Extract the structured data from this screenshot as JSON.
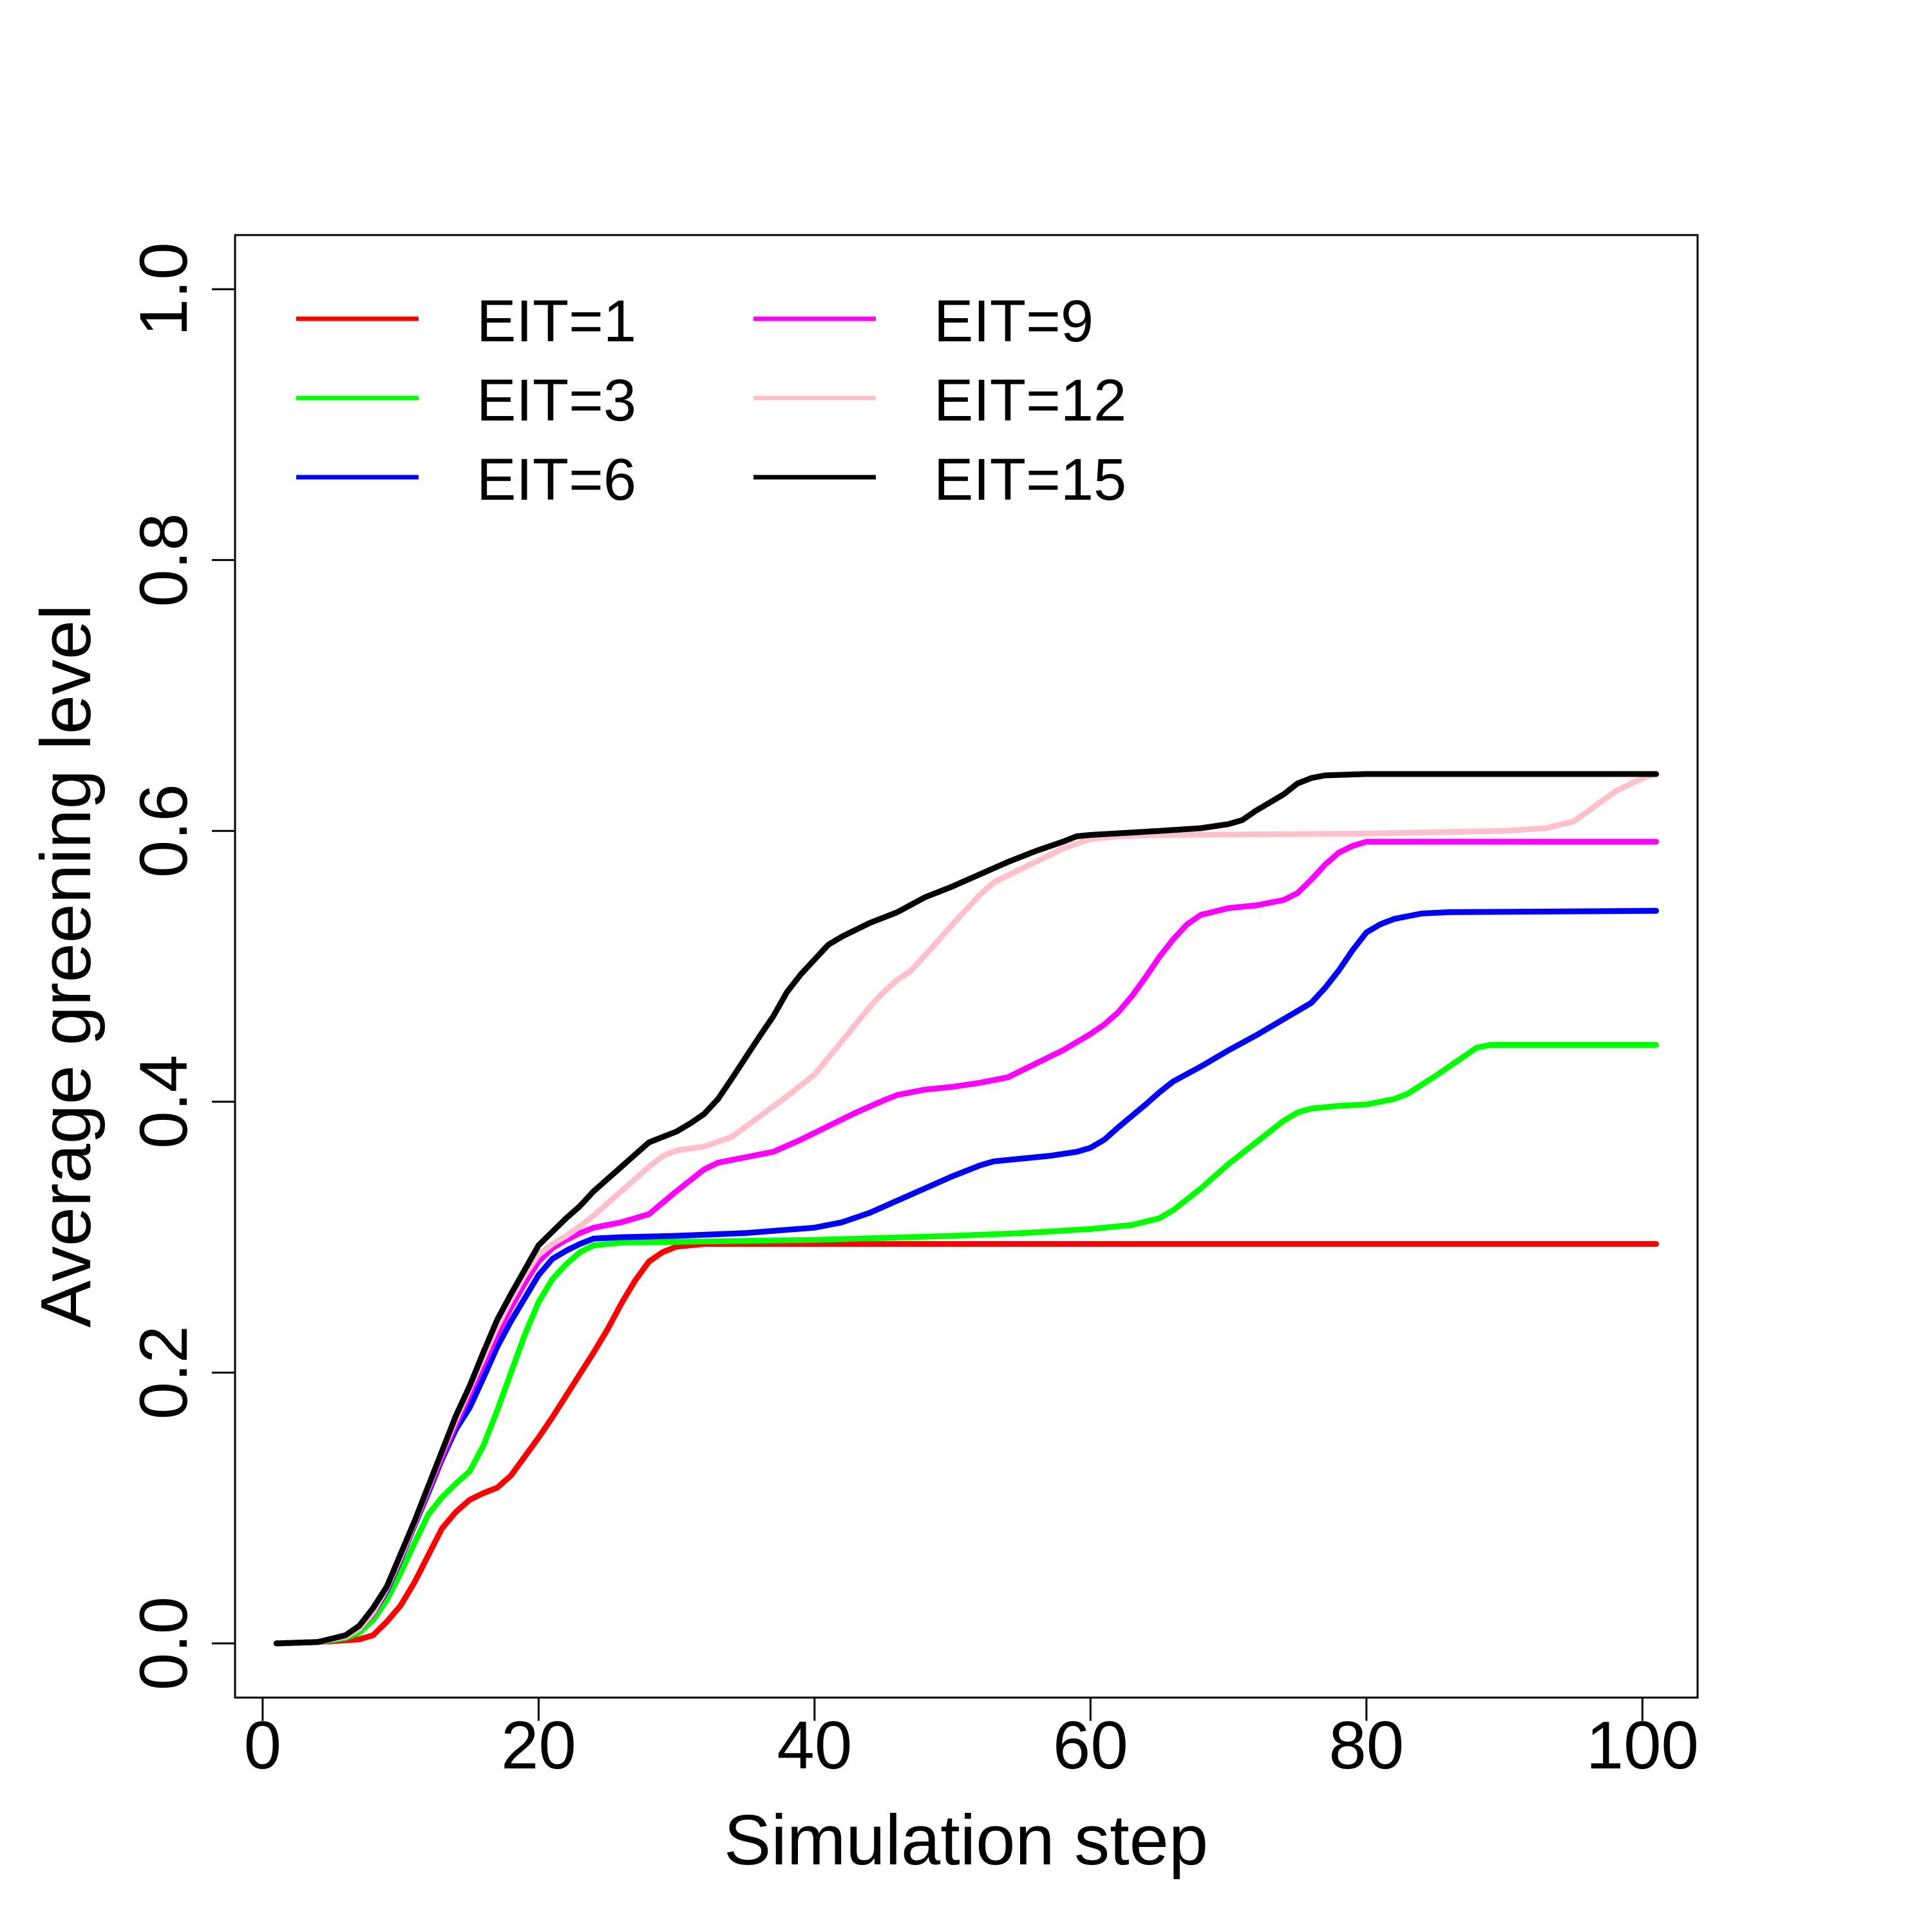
{
  "chart_data": {
    "type": "line",
    "title": "",
    "xlabel": "Simulation step",
    "ylabel": "Average greening level",
    "xlim": [
      -2,
      104
    ],
    "ylim": [
      -0.04,
      1.04
    ],
    "xticks": [
      0,
      20,
      40,
      60,
      80,
      100
    ],
    "yticks": [
      0.0,
      0.2,
      0.4,
      0.6,
      0.8,
      1.0
    ],
    "xtick_labels": [
      "0",
      "20",
      "40",
      "60",
      "80",
      "100"
    ],
    "ytick_labels": [
      "0.0",
      "0.2",
      "0.4",
      "0.6",
      "0.8",
      "1.0"
    ],
    "grid": false,
    "legend_position": "top-left",
    "series": [
      {
        "name": "EIT=1",
        "color": "#FF0000",
        "points": [
          [
            1,
            0
          ],
          [
            4,
            0.001
          ],
          [
            7,
            0.003
          ],
          [
            8,
            0.006
          ],
          [
            9,
            0.016
          ],
          [
            10,
            0.028
          ],
          [
            11,
            0.045
          ],
          [
            12,
            0.065
          ],
          [
            13,
            0.085
          ],
          [
            14,
            0.097
          ],
          [
            15,
            0.106
          ],
          [
            16,
            0.111
          ],
          [
            17,
            0.115
          ],
          [
            18,
            0.124
          ],
          [
            19,
            0.138
          ],
          [
            20,
            0.152
          ],
          [
            21,
            0.167
          ],
          [
            22,
            0.183
          ],
          [
            23,
            0.199
          ],
          [
            24,
            0.215
          ],
          [
            25,
            0.232
          ],
          [
            26,
            0.251
          ],
          [
            27,
            0.268
          ],
          [
            28,
            0.282
          ],
          [
            29,
            0.289
          ],
          [
            30,
            0.293
          ],
          [
            32,
            0.295
          ],
          [
            101,
            0.295
          ]
        ]
      },
      {
        "name": "EIT=3",
        "color": "#00FF00",
        "points": [
          [
            1,
            0
          ],
          [
            4,
            0.001
          ],
          [
            6,
            0.004
          ],
          [
            7,
            0.008
          ],
          [
            8,
            0.017
          ],
          [
            9,
            0.032
          ],
          [
            10,
            0.052
          ],
          [
            11,
            0.074
          ],
          [
            12,
            0.095
          ],
          [
            13,
            0.108
          ],
          [
            14,
            0.118
          ],
          [
            15,
            0.127
          ],
          [
            16,
            0.146
          ],
          [
            17,
            0.172
          ],
          [
            18,
            0.2
          ],
          [
            19,
            0.228
          ],
          [
            20,
            0.252
          ],
          [
            21,
            0.269
          ],
          [
            22,
            0.28
          ],
          [
            23,
            0.289
          ],
          [
            24,
            0.294
          ],
          [
            26,
            0.296
          ],
          [
            40,
            0.298
          ],
          [
            50,
            0.301
          ],
          [
            55,
            0.303
          ],
          [
            60,
            0.306
          ],
          [
            63,
            0.309
          ],
          [
            65,
            0.314
          ],
          [
            66,
            0.32
          ],
          [
            68,
            0.336
          ],
          [
            70,
            0.354
          ],
          [
            72,
            0.37
          ],
          [
            74,
            0.386
          ],
          [
            75,
            0.392
          ],
          [
            76,
            0.395
          ],
          [
            78,
            0.397
          ],
          [
            80,
            0.398
          ],
          [
            82,
            0.402
          ],
          [
            83,
            0.406
          ],
          [
            85,
            0.419
          ],
          [
            87,
            0.433
          ],
          [
            88,
            0.44
          ],
          [
            89,
            0.442
          ],
          [
            101,
            0.442
          ]
        ]
      },
      {
        "name": "EIT=6",
        "color": "#0000FF",
        "points": [
          [
            1,
            0
          ],
          [
            4,
            0.001
          ],
          [
            6,
            0.005
          ],
          [
            7,
            0.011
          ],
          [
            8,
            0.022
          ],
          [
            9,
            0.039
          ],
          [
            10,
            0.062
          ],
          [
            11,
            0.087
          ],
          [
            12,
            0.111
          ],
          [
            13,
            0.136
          ],
          [
            14,
            0.158
          ],
          [
            15,
            0.174
          ],
          [
            16,
            0.196
          ],
          [
            17,
            0.219
          ],
          [
            18,
            0.238
          ],
          [
            19,
            0.255
          ],
          [
            20,
            0.272
          ],
          [
            21,
            0.284
          ],
          [
            22,
            0.29
          ],
          [
            23,
            0.295
          ],
          [
            24,
            0.299
          ],
          [
            26,
            0.3
          ],
          [
            30,
            0.301
          ],
          [
            35,
            0.303
          ],
          [
            40,
            0.307
          ],
          [
            42,
            0.311
          ],
          [
            44,
            0.318
          ],
          [
            46,
            0.327
          ],
          [
            48,
            0.336
          ],
          [
            50,
            0.345
          ],
          [
            52,
            0.353
          ],
          [
            53,
            0.356
          ],
          [
            55,
            0.358
          ],
          [
            57,
            0.36
          ],
          [
            59,
            0.363
          ],
          [
            60,
            0.366
          ],
          [
            61,
            0.372
          ],
          [
            62,
            0.381
          ],
          [
            64,
            0.398
          ],
          [
            65,
            0.407
          ],
          [
            66,
            0.415
          ],
          [
            68,
            0.426
          ],
          [
            70,
            0.438
          ],
          [
            72,
            0.449
          ],
          [
            74,
            0.461
          ],
          [
            75,
            0.467
          ],
          [
            76,
            0.473
          ],
          [
            77,
            0.484
          ],
          [
            78,
            0.497
          ],
          [
            79,
            0.512
          ],
          [
            80,
            0.525
          ],
          [
            81,
            0.531
          ],
          [
            82,
            0.535
          ],
          [
            84,
            0.539
          ],
          [
            86,
            0.54
          ],
          [
            101,
            0.541
          ]
        ]
      },
      {
        "name": "EIT=9",
        "color": "#FF00FF",
        "points": [
          [
            1,
            0
          ],
          [
            4,
            0.001
          ],
          [
            6,
            0.005
          ],
          [
            7,
            0.011
          ],
          [
            8,
            0.022
          ],
          [
            9,
            0.04
          ],
          [
            10,
            0.063
          ],
          [
            11,
            0.088
          ],
          [
            12,
            0.113
          ],
          [
            13,
            0.138
          ],
          [
            14,
            0.162
          ],
          [
            15,
            0.184
          ],
          [
            16,
            0.206
          ],
          [
            17,
            0.228
          ],
          [
            18,
            0.248
          ],
          [
            19,
            0.266
          ],
          [
            20,
            0.282
          ],
          [
            21,
            0.292
          ],
          [
            22,
            0.298
          ],
          [
            23,
            0.303
          ],
          [
            24,
            0.307
          ],
          [
            26,
            0.311
          ],
          [
            28,
            0.317
          ],
          [
            30,
            0.334
          ],
          [
            32,
            0.35
          ],
          [
            33,
            0.355
          ],
          [
            35,
            0.359
          ],
          [
            37,
            0.363
          ],
          [
            39,
            0.372
          ],
          [
            41,
            0.382
          ],
          [
            43,
            0.392
          ],
          [
            45,
            0.401
          ],
          [
            46,
            0.405
          ],
          [
            48,
            0.409
          ],
          [
            50,
            0.411
          ],
          [
            52,
            0.414
          ],
          [
            54,
            0.418
          ],
          [
            56,
            0.428
          ],
          [
            58,
            0.438
          ],
          [
            60,
            0.45
          ],
          [
            61,
            0.457
          ],
          [
            62,
            0.466
          ],
          [
            63,
            0.478
          ],
          [
            64,
            0.492
          ],
          [
            65,
            0.507
          ],
          [
            66,
            0.52
          ],
          [
            67,
            0.531
          ],
          [
            68,
            0.538
          ],
          [
            70,
            0.543
          ],
          [
            72,
            0.545
          ],
          [
            74,
            0.549
          ],
          [
            75,
            0.554
          ],
          [
            76,
            0.564
          ],
          [
            77,
            0.575
          ],
          [
            78,
            0.584
          ],
          [
            79,
            0.589
          ],
          [
            80,
            0.592
          ],
          [
            82,
            0.592
          ],
          [
            101,
            0.592
          ]
        ]
      },
      {
        "name": "EIT=12",
        "color": "#FFC0CB",
        "points": [
          [
            1,
            0
          ],
          [
            4,
            0.001
          ],
          [
            6,
            0.005
          ],
          [
            7,
            0.011
          ],
          [
            8,
            0.023
          ],
          [
            9,
            0.041
          ],
          [
            10,
            0.064
          ],
          [
            11,
            0.089
          ],
          [
            12,
            0.115
          ],
          [
            13,
            0.141
          ],
          [
            14,
            0.165
          ],
          [
            15,
            0.188
          ],
          [
            16,
            0.211
          ],
          [
            17,
            0.234
          ],
          [
            18,
            0.254
          ],
          [
            19,
            0.272
          ],
          [
            20,
            0.287
          ],
          [
            21,
            0.295
          ],
          [
            22,
            0.301
          ],
          [
            23,
            0.308
          ],
          [
            24,
            0.316
          ],
          [
            26,
            0.334
          ],
          [
            28,
            0.352
          ],
          [
            29,
            0.36
          ],
          [
            30,
            0.364
          ],
          [
            32,
            0.367
          ],
          [
            34,
            0.374
          ],
          [
            36,
            0.389
          ],
          [
            38,
            0.404
          ],
          [
            40,
            0.42
          ],
          [
            42,
            0.445
          ],
          [
            44,
            0.47
          ],
          [
            45,
            0.481
          ],
          [
            46,
            0.49
          ],
          [
            47,
            0.497
          ],
          [
            48,
            0.508
          ],
          [
            50,
            0.531
          ],
          [
            52,
            0.553
          ],
          [
            53,
            0.562
          ],
          [
            54,
            0.567
          ],
          [
            56,
            0.577
          ],
          [
            58,
            0.587
          ],
          [
            60,
            0.594
          ],
          [
            62,
            0.596
          ],
          [
            65,
            0.597
          ],
          [
            80,
            0.598
          ],
          [
            90,
            0.6
          ],
          [
            93,
            0.602
          ],
          [
            95,
            0.607
          ],
          [
            96,
            0.614
          ],
          [
            98,
            0.629
          ],
          [
            100,
            0.639
          ],
          [
            101,
            0.642
          ]
        ]
      },
      {
        "name": "EIT=15",
        "color": "#000000",
        "points": [
          [
            1,
            0
          ],
          [
            4,
            0.001
          ],
          [
            6,
            0.006
          ],
          [
            7,
            0.013
          ],
          [
            8,
            0.026
          ],
          [
            9,
            0.042
          ],
          [
            10,
            0.066
          ],
          [
            11,
            0.09
          ],
          [
            12,
            0.116
          ],
          [
            13,
            0.142
          ],
          [
            14,
            0.168
          ],
          [
            15,
            0.19
          ],
          [
            16,
            0.215
          ],
          [
            17,
            0.239
          ],
          [
            18,
            0.258
          ],
          [
            19,
            0.276
          ],
          [
            20,
            0.294
          ],
          [
            21,
            0.304
          ],
          [
            22,
            0.314
          ],
          [
            23,
            0.323
          ],
          [
            24,
            0.334
          ],
          [
            25,
            0.343
          ],
          [
            26,
            0.352
          ],
          [
            27,
            0.361
          ],
          [
            28,
            0.37
          ],
          [
            30,
            0.378
          ],
          [
            31,
            0.384
          ],
          [
            32,
            0.391
          ],
          [
            33,
            0.402
          ],
          [
            34,
            0.417
          ],
          [
            36,
            0.448
          ],
          [
            37,
            0.463
          ],
          [
            38,
            0.481
          ],
          [
            39,
            0.494
          ],
          [
            40,
            0.505
          ],
          [
            41,
            0.516
          ],
          [
            42,
            0.522
          ],
          [
            44,
            0.532
          ],
          [
            46,
            0.54
          ],
          [
            48,
            0.551
          ],
          [
            50,
            0.559
          ],
          [
            52,
            0.568
          ],
          [
            54,
            0.577
          ],
          [
            56,
            0.585
          ],
          [
            58,
            0.592
          ],
          [
            59,
            0.596
          ],
          [
            60,
            0.597
          ],
          [
            65,
            0.6
          ],
          [
            68,
            0.602
          ],
          [
            70,
            0.605
          ],
          [
            71,
            0.608
          ],
          [
            72,
            0.615
          ],
          [
            74,
            0.627
          ],
          [
            75,
            0.635
          ],
          [
            76,
            0.639
          ],
          [
            77,
            0.641
          ],
          [
            80,
            0.642
          ],
          [
            101,
            0.642
          ]
        ]
      }
    ]
  }
}
